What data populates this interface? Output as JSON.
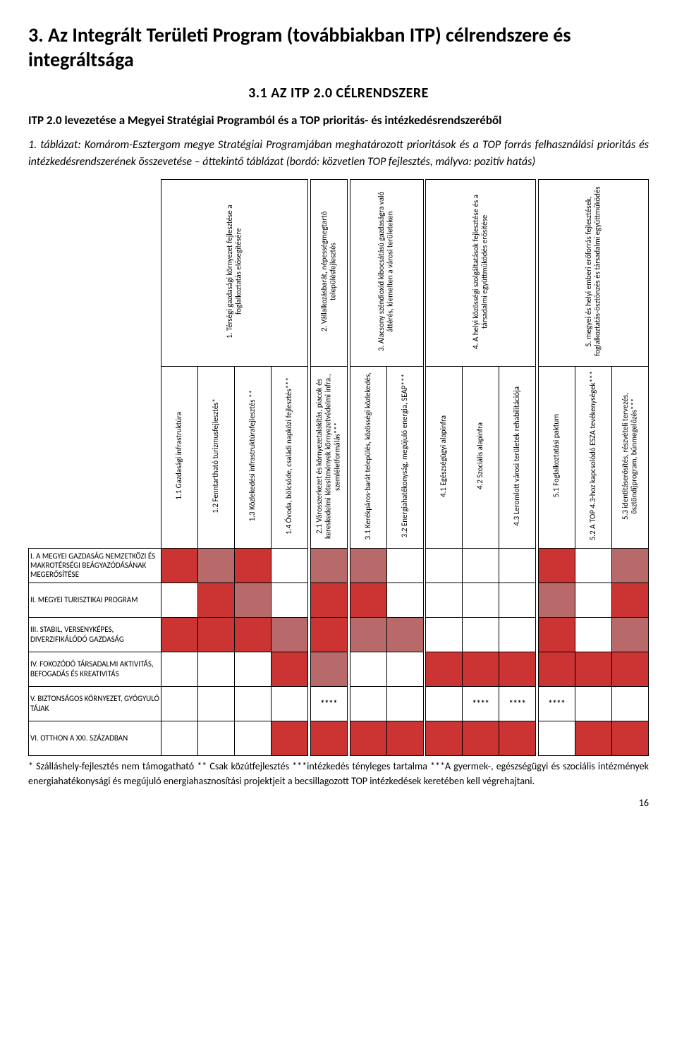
{
  "title": "3. Az Integrált Területi Program (továbbiakban ITP) célrendszere és integráltsága",
  "subheading": "3.1 AZ ITP 2.0 CÉLRENDSZERE",
  "intro": "ITP 2.0 levezetése a Megyei Stratégiai Programból és a TOP prioritás- és intézkedésrendszeréből",
  "caption": "1. táblázat: Komárom-Esztergom megye Stratégiai Programjában meghatározott prioritások és a TOP forrás felhasználási prioritás és intézkedésrendszerének összevetése – áttekintő táblázat (bordó: közvetlen TOP fejlesztés, mályva: pozitív hatás)",
  "footnotes": "* Szálláshely-fejlesztés nem támogatható ** Csak közútfejlesztés ***intézkedés tényleges tartalma ***A gyermek-, egészségügyi és szociális intézmények energiahatékonysági és megújuló energiahasznosítási projektjeit a becsillagozott TOP intézkedések keretében kell végrehajtani.",
  "page_number": "16",
  "colors": {
    "direct": "#cc3333",
    "positive": "#b86a6a",
    "none": "#ffffff",
    "border": "#000000"
  },
  "matrix": {
    "column_headers_row1": [
      "1. Térségi gazdasági környezet fejlesztése a foglalkoztatás elősegítésére",
      "2. Vállalkozásbarát, népességmegtartó településfejlesztés",
      "3. Alacsony széndioxid kibocsátású gazdaságra való áttérés, kiemelten a városi területeken",
      "4. A helyi közösségi szolgáltatások fejlesztése és a társadalmi együttműködés erősítése",
      "5. megyei és helyi emberi erőforrás fejlesztések, foglalkoztatás-ösztönzés és társadalmi együttműködés"
    ],
    "column_headers_row2": [
      "1.1 Gazdasági infrastruktúra",
      "1.2 Fenntartható turizmusfejlesztés*",
      "1.3 Közlekedési infrastruktúrafejlesztés **",
      "1.4 Óvoda, bölcsőde, családi napközi fejlesztés***",
      "2.1 Városszerkezet és környezetalakítás, piacok és kereskedelmi létesítmények környezetvédelmi infra., szemléletformálás***",
      "3.1 Kerékpáros-barát település, közösségi közlekedés,",
      "3.2 Energiahatékonyság, megújuló energia, SEAP***",
      "4.1 Egészségügyi alapinfra",
      "4.2 Szociális alapinfra",
      "4.3 Leromlott városi területek rehabilitációja",
      "5.1 Foglalkoztatási paktum",
      "5.2 A TOP 4.3-hoz kapcsolódó ESZA tevékenységek***",
      "5.3 identitáserősítés, részvételi tervezés, ösztöndíjprogram, bűnmegelőzés***"
    ],
    "column_groups": [
      4,
      1,
      2,
      3,
      3
    ],
    "row_labels": [
      "I. A MEGYEI GAZDASÁG NEMZETKÖZI ÉS MAKROTÉRSÉGI BEÁGYAZÓDÁSÁNAK MEGERŐSÍTÉSE",
      "II. MEGYEI TURISZTIKAI PROGRAM",
      "III. STABIL, VERSENYKÉPES, DIVERZIFIKÁLÓDÓ GAZDASÁG",
      "IV. FOKOZÓDÓ TÁRSADALMI AKTIVITÁS, BEFOGADÁS ÉS KREATIVITÁS",
      "V. BIZTONSÁGOS KÖRNYEZET, GYÓGYULÓ TÁJAK",
      "VI. OTTHON A XXI. SZÁZADBAN"
    ],
    "cells": [
      [
        "d",
        "p",
        "d",
        "n",
        "p",
        "p",
        "n",
        "n",
        "n",
        "n",
        "d",
        "n",
        "p"
      ],
      [
        "n",
        "d",
        "p",
        "n",
        "d",
        "d",
        "n",
        "n",
        "n",
        "n",
        "p",
        "n",
        "d"
      ],
      [
        "d",
        "d",
        "d",
        "p",
        "d",
        "p",
        "p",
        "n",
        "n",
        "n",
        "d",
        "n",
        "p"
      ],
      [
        "n",
        "n",
        "n",
        "d",
        "p",
        "n",
        "n",
        "d",
        "d",
        "d",
        "d",
        "d",
        "d"
      ],
      [
        "n",
        "n",
        "n",
        "n",
        "s",
        "n",
        "n",
        "n",
        "s",
        "s",
        "s",
        "n",
        "n"
      ],
      [
        "n",
        "n",
        "n",
        "d",
        "d",
        "d",
        "d",
        "d",
        "d",
        "d",
        "n",
        "d",
        "d"
      ]
    ],
    "star_text": "****",
    "col_widths": {
      "label": 152,
      "data": 42,
      "spacer": 3
    }
  }
}
